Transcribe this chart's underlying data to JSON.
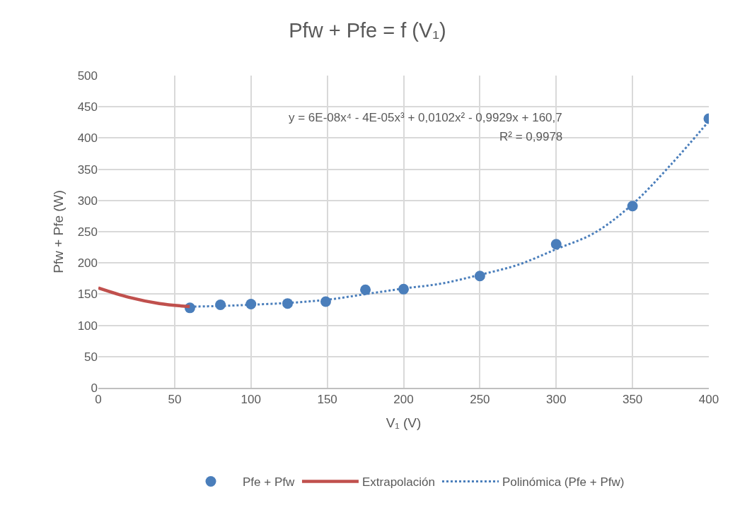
{
  "chart_data": {
    "type": "scatter",
    "title": "Pfw + Pfe = f (V₁)",
    "xlabel": "V₁ (V)",
    "ylabel": "Pfw + Pfe (W)",
    "xlim": [
      0,
      400
    ],
    "xticks": [
      0,
      50,
      100,
      150,
      200,
      250,
      300,
      350,
      400
    ],
    "ylim": [
      0,
      500
    ],
    "yticks": [
      0,
      50,
      100,
      150,
      200,
      250,
      300,
      350,
      400,
      450,
      500
    ],
    "grid": true,
    "legend": "bottom",
    "series": [
      {
        "name": "Pfe + Pfw",
        "marker": "circle",
        "color": "#4a7ebb",
        "x": [
          60,
          80,
          100,
          124,
          149,
          175,
          200,
          250,
          300,
          350,
          400
        ],
        "values": [
          128,
          133,
          134,
          135,
          138,
          157,
          158,
          179,
          230,
          291,
          431
        ]
      },
      {
        "name": "Extrapolación",
        "type": "line",
        "marker": "none",
        "line_style": "solid",
        "color": "#c0504d",
        "x": [
          0,
          20,
          40,
          60
        ],
        "values": [
          160,
          145,
          135,
          130
        ]
      },
      {
        "name": "Polinómica (Pfe + Pfw)",
        "type": "line",
        "marker": "none",
        "line_style": "dotted",
        "color": "#4a7ebb",
        "x": [
          60,
          80,
          100,
          125,
          150,
          175,
          200,
          225,
          250,
          275,
          300,
          325,
          350,
          375,
          400
        ],
        "values": [
          130,
          131,
          133,
          136,
          141,
          150,
          159,
          167,
          181,
          197,
          222,
          248,
          294,
          357,
          427
        ]
      }
    ],
    "annotations": [
      "y = 6E-08x⁴ - 4E-05x³ + 0,0102x² - 0,9929x + 160,7",
      "R² = 0,9978"
    ]
  }
}
